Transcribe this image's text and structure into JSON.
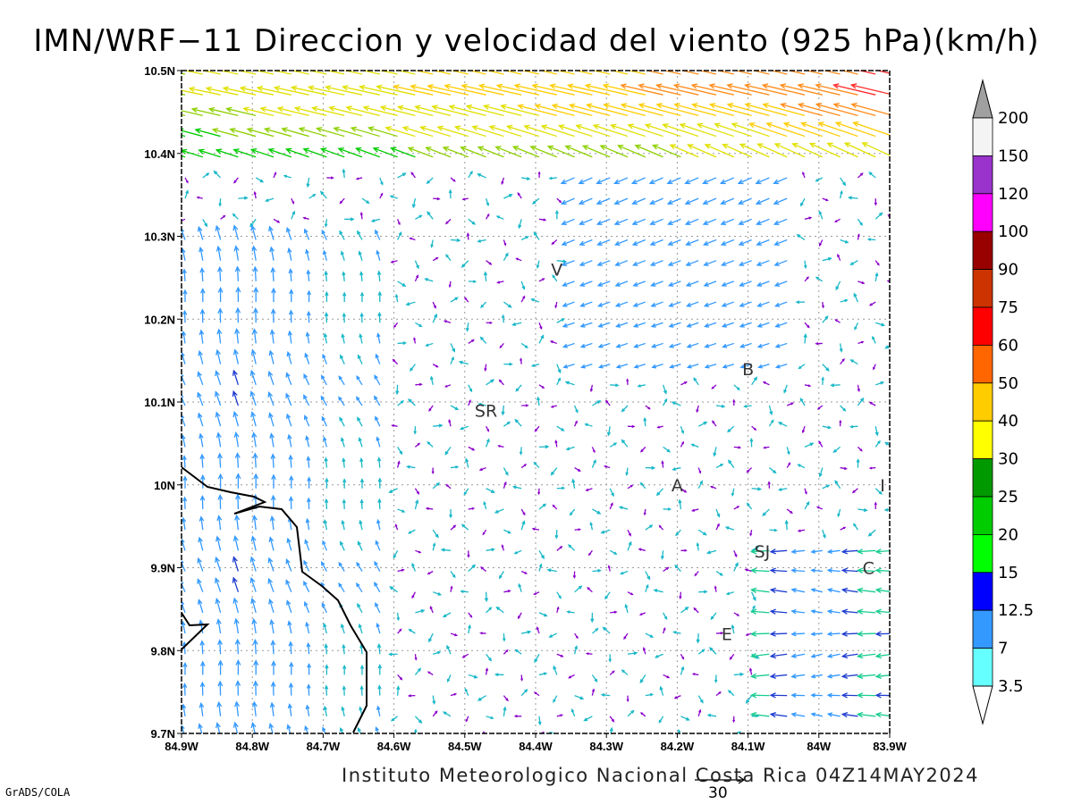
{
  "title": "IMN/WRF−11 Direccion y velocidad del viento (925 hPa)(km/h)",
  "credit": "Instituto Meteorologico Nacional Costa Rica 04Z14MAY2024",
  "software": "GrADS/COLA",
  "reference_vector": {
    "label": "30",
    "value": 30
  },
  "map": {
    "lon_range": [
      -84.9,
      -83.9
    ],
    "lat_range": [
      9.7,
      10.5
    ],
    "x_ticks": [
      "84.9W",
      "84.8W",
      "84.7W",
      "84.6W",
      "84.5W",
      "84.4W",
      "84.3W",
      "84.2W",
      "84.1W",
      "84W",
      "83.9W"
    ],
    "y_ticks": [
      "9.7N",
      "9.8N",
      "9.9N",
      "10N",
      "10.1N",
      "10.2N",
      "10.3N",
      "10.4N",
      "10.5N"
    ],
    "grid": "dotted",
    "places": [
      {
        "label": "V",
        "lon": -84.37,
        "lat": 10.26
      },
      {
        "label": "B",
        "lon": -84.1,
        "lat": 10.14
      },
      {
        "label": "SR",
        "lon": -84.47,
        "lat": 10.09
      },
      {
        "label": "A",
        "lon": -84.2,
        "lat": 10.0
      },
      {
        "label": "I",
        "lon": -83.91,
        "lat": 10.0
      },
      {
        "label": "SJ",
        "lon": -84.08,
        "lat": 9.92
      },
      {
        "label": "C",
        "lon": -83.93,
        "lat": 9.9
      },
      {
        "label": "E",
        "lon": -84.13,
        "lat": 9.82
      }
    ]
  },
  "colorbar": {
    "labels": [
      "200",
      "150",
      "120",
      "100",
      "90",
      "75",
      "60",
      "50",
      "40",
      "30",
      "25",
      "20",
      "15",
      "12.5",
      "7",
      "3.5"
    ],
    "colors": [
      "#a0a0a0",
      "#f4f4f4",
      "#9933cc",
      "#ff00ff",
      "#990000",
      "#cc3300",
      "#ff0000",
      "#ff6600",
      "#ffcc00",
      "#ffff00",
      "#009900",
      "#00cc00",
      "#00ff00",
      "#0000ff",
      "#3399ff",
      "#66ffff",
      "#ffffff"
    ]
  }
}
